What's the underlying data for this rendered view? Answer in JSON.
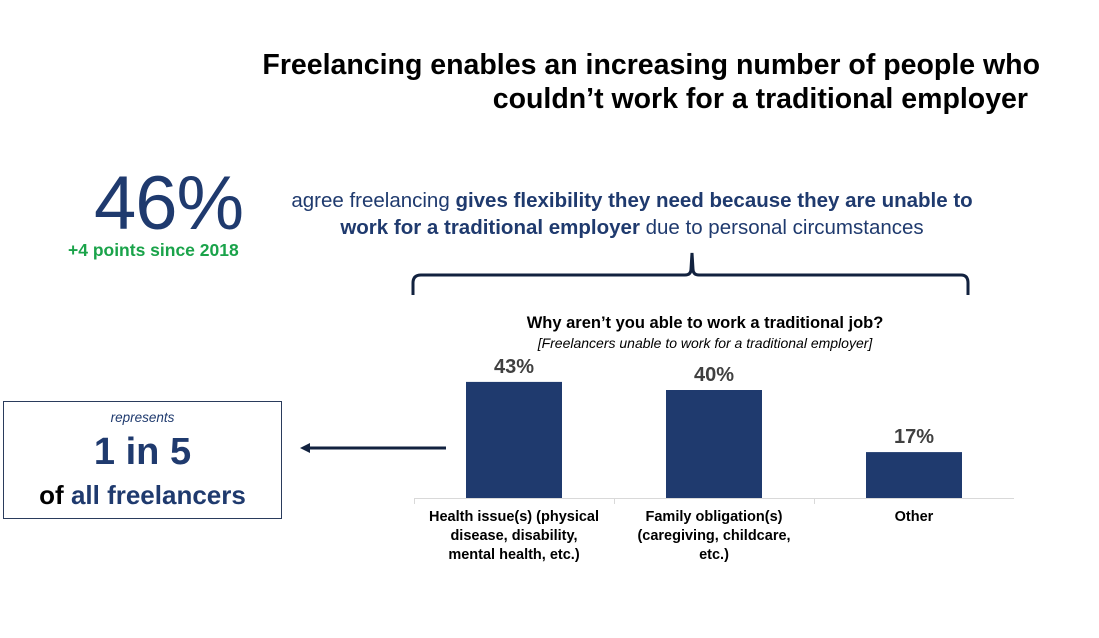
{
  "header": {
    "title_line1": "Freelancing enables an increasing number of people who",
    "title_line2": "couldn’t work for a traditional employer"
  },
  "stat": {
    "value": "46%",
    "change": "+4 points since 2018",
    "text_pre": "agree freelancing ",
    "text_bold": "gives flexibility they need because they are unable to work for a traditional employer",
    "text_post": " due to personal circumstances"
  },
  "callout": {
    "represents": "represents",
    "ratio": "1 in 5",
    "of": "of",
    "group": "all freelancers"
  },
  "colors": {
    "navy": "#1f3a6e",
    "green": "#1aa34a",
    "label_gray": "#404040",
    "axis": "#d9d9d9"
  },
  "chart_data": {
    "type": "bar",
    "title": "Why aren’t you able to work a traditional job?",
    "subtitle": "[Freelancers unable to work for a traditional employer]",
    "categories": [
      "Health issue(s) (physical disease, disability, mental health, etc.)",
      "Family obligation(s) (caregiving, childcare, etc.)",
      "Other"
    ],
    "category_lines": [
      [
        "Health issue(s) (physical",
        "disease, disability,",
        "mental health, etc.)"
      ],
      [
        "Family obligation(s)",
        "(caregiving, childcare,",
        "etc.)"
      ],
      [
        "Other"
      ]
    ],
    "values": [
      43,
      40,
      17
    ],
    "data_labels": [
      "43%",
      "40%",
      "17%"
    ],
    "unit": "%",
    "xlabel": "",
    "ylabel": "",
    "ylim": [
      0,
      50
    ],
    "grid": false,
    "legend": "none"
  }
}
